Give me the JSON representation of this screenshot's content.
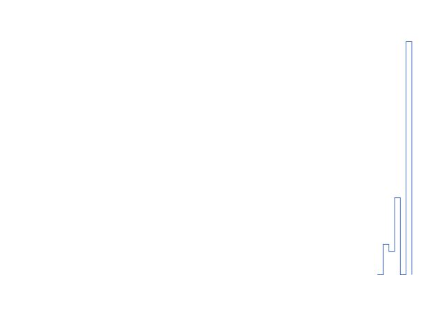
{
  "chart_data": {
    "type": "line",
    "line_shape": "step",
    "series": [
      {
        "name": "",
        "color": "#4472c4",
        "values": [
          0,
          0.13,
          0.1,
          0.33,
          0,
          1,
          0
        ]
      }
    ],
    "title": "",
    "xlabel": "",
    "ylabel": "",
    "ylim": [
      0,
      1
    ],
    "grid": false,
    "axes_visible": false
  }
}
